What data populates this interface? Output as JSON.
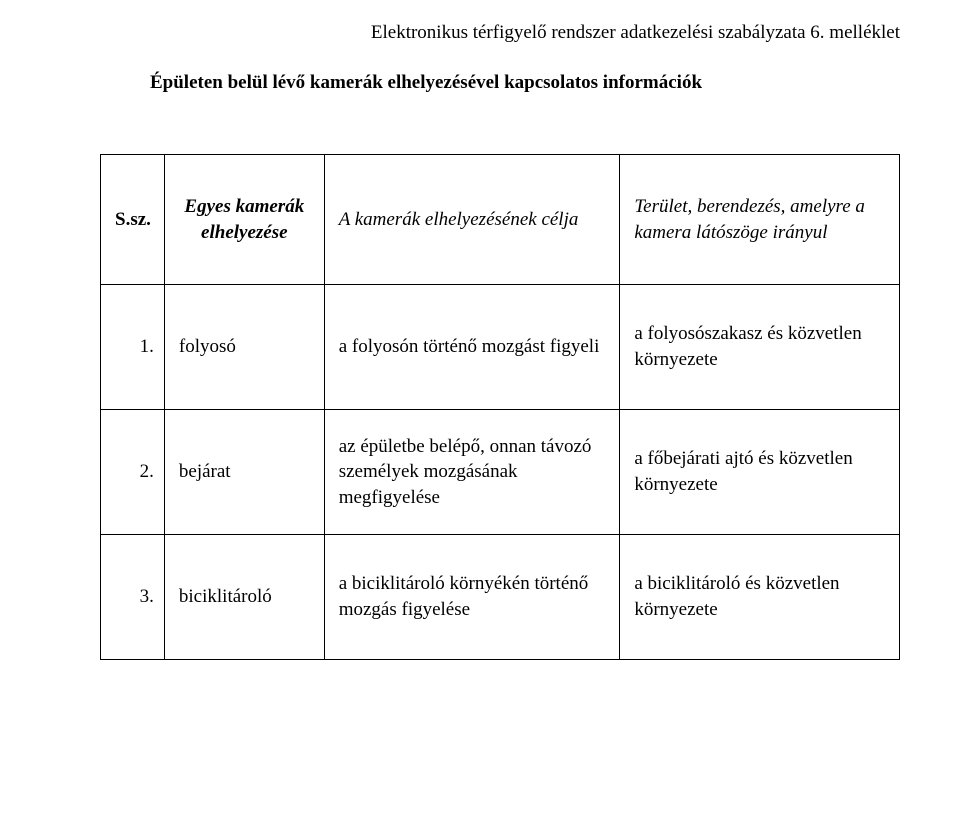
{
  "document": {
    "header_text": "Elektronikus térfigyelő rendszer adatkezelési szabályzata 6. melléklet",
    "title_text": "Épületen belül lévő kamerák elhelyezésével kapcsolatos információk"
  },
  "table": {
    "headers": {
      "col1": "S.sz.",
      "col2": "Egyes kamerák elhelyezése",
      "col3": "A kamerák elhelyezésének célja",
      "col4": "Terület, berendezés, amelyre a kamera látószöge irányul"
    },
    "rows": [
      {
        "num": "1.",
        "location": "folyosó",
        "purpose": "a folyosón történő mozgást figyeli",
        "area": "a folyosószakasz és közvetlen környezete"
      },
      {
        "num": "2.",
        "location": "bejárat",
        "purpose": "az épületbe belépő, onnan távozó személyek mozgásának megfigyelése",
        "area": "a főbejárati ajtó és közvetlen környezete"
      },
      {
        "num": "3.",
        "location": "biciklitároló",
        "purpose": "a biciklitároló környékén történő mozgás figyelése",
        "area": "a biciklitároló és közvetlen környezete"
      }
    ]
  },
  "style": {
    "page_bg": "#ffffff",
    "text_color": "#000000",
    "border_color": "#000000",
    "font_family": "Times New Roman",
    "body_fontsize_pt": 14,
    "header_fontsize_pt": 14
  }
}
